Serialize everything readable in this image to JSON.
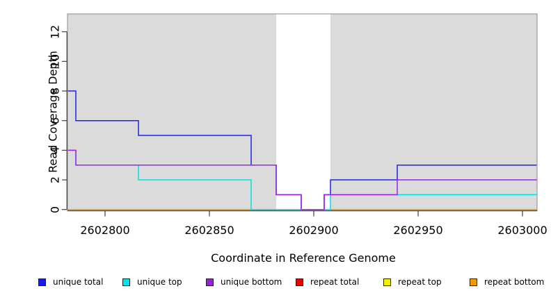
{
  "figure": {
    "plot_bg_shaded": "#DBDBDB",
    "plot_bg_band": "#FFFFFF",
    "box_color": "#9C9C9C",
    "axis_color": "#3F3F3F",
    "text_color": "#000000"
  },
  "axes": {
    "y_label": "Read Coverage Depth",
    "x_label": "Coordinate in Reference Genome",
    "y_ticks": [
      0,
      2,
      4,
      6,
      8,
      10,
      12
    ],
    "x_ticks": [
      2602800,
      2602850,
      2602900,
      2602950,
      2603000
    ]
  },
  "chart_data": {
    "type": "line",
    "subtype": "step-coverage",
    "title": "",
    "xlabel": "Coordinate in Reference Genome",
    "ylabel": "Read Coverage Depth",
    "xlim": [
      2602782,
      2603007
    ],
    "ylim": [
      0,
      13.2
    ],
    "grid": false,
    "legend_position": "bottom",
    "shaded_regions_x": [
      [
        2602782,
        2602882
      ],
      [
        2602908,
        2603007
      ]
    ],
    "white_band_x": [
      2602882,
      2602908
    ],
    "series": [
      {
        "name": "repeat total",
        "color": "#E60000",
        "draw_order": 1,
        "points": [
          [
            2602782,
            0
          ],
          [
            2603007,
            0
          ]
        ]
      },
      {
        "name": "repeat top",
        "color": "#F2F200",
        "draw_order": 2,
        "points": [
          [
            2602782,
            0
          ],
          [
            2603007,
            0
          ]
        ]
      },
      {
        "name": "repeat bottom",
        "color": "#F59B00",
        "draw_order": 3,
        "points": [
          [
            2602782,
            0
          ],
          [
            2603007,
            0
          ]
        ]
      },
      {
        "name": "unique total",
        "color": "#2222EE",
        "draw_order": 4,
        "points": [
          [
            2602782,
            8
          ],
          [
            2602786,
            6
          ],
          [
            2602816,
            5
          ],
          [
            2602870,
            3
          ],
          [
            2602882,
            1
          ],
          [
            2602894,
            0
          ],
          [
            2602905,
            1
          ],
          [
            2602908,
            2
          ],
          [
            2602940,
            3
          ],
          [
            2603007,
            3
          ]
        ]
      },
      {
        "name": "unique top",
        "color": "#00DFDF",
        "draw_order": 5,
        "points": [
          [
            2602782,
            4
          ],
          [
            2602786,
            3
          ],
          [
            2602816,
            2
          ],
          [
            2602870,
            0
          ],
          [
            2602908,
            1
          ],
          [
            2603007,
            1
          ]
        ]
      },
      {
        "name": "unique bottom",
        "color": "#A020F0",
        "draw_order": 6,
        "points": [
          [
            2602782,
            4
          ],
          [
            2602786,
            3
          ],
          [
            2602882,
            1
          ],
          [
            2602894,
            0
          ],
          [
            2602905,
            1
          ],
          [
            2602940,
            2
          ],
          [
            2603007,
            2
          ]
        ]
      }
    ]
  },
  "legend": {
    "items": [
      {
        "label": "unique total",
        "color": "#1B1BE8"
      },
      {
        "label": "unique top",
        "color": "#00E6E6"
      },
      {
        "label": "unique bottom",
        "color": "#9B20D9"
      },
      {
        "label": "repeat total",
        "color": "#E60000"
      },
      {
        "label": "repeat top",
        "color": "#F2F200"
      },
      {
        "label": "repeat bottom",
        "color": "#F59B00"
      }
    ]
  }
}
